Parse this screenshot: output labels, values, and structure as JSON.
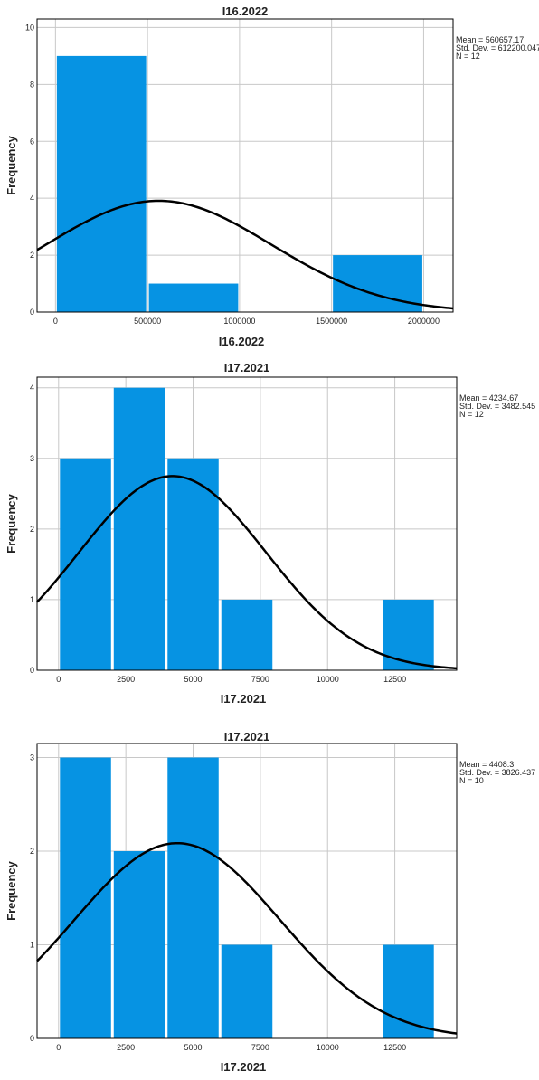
{
  "chart_data": [
    {
      "type": "bar",
      "title": "I16.2022",
      "xlabel": "I16.2022",
      "ylabel": "Frequency",
      "bin_edges": [
        0,
        500000,
        1000000,
        1500000,
        2000000
      ],
      "values": [
        9,
        1,
        0,
        2
      ],
      "xlim": [
        -100000,
        2160000
      ],
      "ylim": [
        0,
        10.3
      ],
      "xticks": [
        0,
        500000,
        1000000,
        1500000,
        2000000
      ],
      "xtick_labels": [
        "0",
        "500000",
        "1000000",
        "1500000",
        "2000000"
      ],
      "yticks": [
        0,
        2,
        4,
        6,
        8,
        10
      ],
      "ytick_labels": [
        "0",
        "2",
        "4",
        "6",
        "8",
        "10"
      ],
      "stats": [
        "Mean = 560657.17",
        "Std. Dev. = 612200.047",
        "N = 12"
      ],
      "normal_curve": {
        "mean": 560657.17,
        "sd": 612200.047,
        "n": 12,
        "bin_width": 500000
      },
      "grid": true,
      "colors": {
        "bar": "#0693e3",
        "curve": "#000000"
      }
    },
    {
      "type": "bar",
      "title": "I17.2021",
      "xlabel": "I17.2021",
      "ylabel": "Frequency",
      "bin_edges": [
        0,
        2000,
        4000,
        6000,
        8000,
        10000,
        12000,
        14000
      ],
      "values": [
        3,
        4,
        3,
        1,
        0,
        0,
        1
      ],
      "xlim": [
        -800,
        14800
      ],
      "ylim": [
        0,
        4.15
      ],
      "xticks": [
        0,
        2500,
        5000,
        7500,
        10000,
        12500
      ],
      "xtick_labels": [
        "0",
        "2500",
        "5000",
        "7500",
        "10000",
        "12500"
      ],
      "yticks": [
        0,
        1,
        2,
        3,
        4
      ],
      "ytick_labels": [
        "0",
        "1",
        "2",
        "3",
        "4"
      ],
      "stats": [
        "Mean = 4234.67",
        "Std. Dev. = 3482.545",
        "N = 12"
      ],
      "normal_curve": {
        "mean": 4234.67,
        "sd": 3482.545,
        "n": 12,
        "bin_width": 2000
      },
      "grid": true,
      "colors": {
        "bar": "#0693e3",
        "curve": "#000000"
      }
    },
    {
      "type": "bar",
      "title": "I17.2021",
      "xlabel": "I17.2021",
      "ylabel": "Frequency",
      "bin_edges": [
        0,
        2000,
        4000,
        6000,
        8000,
        10000,
        12000,
        14000
      ],
      "values": [
        3,
        2,
        3,
        1,
        0,
        0,
        1
      ],
      "xlim": [
        -800,
        14800
      ],
      "ylim": [
        0,
        3.15
      ],
      "xticks": [
        0,
        2500,
        5000,
        7500,
        10000,
        12500
      ],
      "xtick_labels": [
        "0",
        "2500",
        "5000",
        "7500",
        "10000",
        "12500"
      ],
      "yticks": [
        0,
        1,
        2,
        3
      ],
      "ytick_labels": [
        "0",
        "1",
        "2",
        "3"
      ],
      "stats": [
        "Mean = 4408.3",
        "Std. Dev. = 3826.437",
        "N = 10"
      ],
      "normal_curve": {
        "mean": 4408.3,
        "sd": 3826.437,
        "n": 10,
        "bin_width": 2000
      },
      "grid": true,
      "colors": {
        "bar": "#0693e3",
        "curve": "#000000"
      }
    }
  ]
}
